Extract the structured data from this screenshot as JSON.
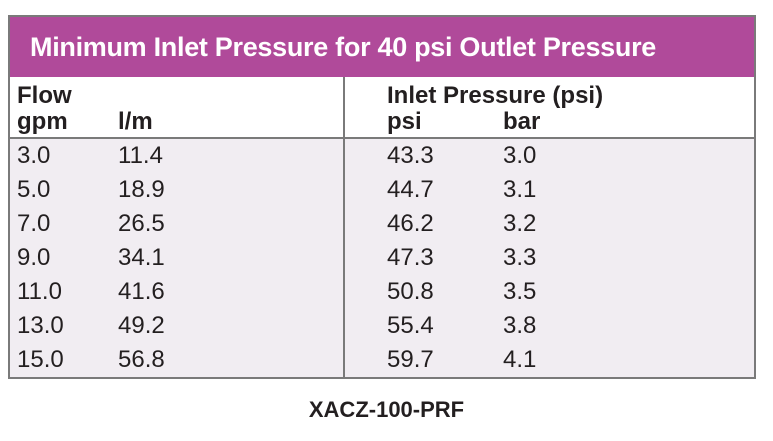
{
  "table": {
    "title": "Minimum Inlet Pressure for 40 psi Outlet Pressure",
    "headers": {
      "flow": "Flow",
      "gpm": "gpm",
      "lpm": "l/m",
      "inlet": "Inlet Pressure (psi)",
      "psi": "psi",
      "bar": "bar"
    },
    "rows": [
      {
        "gpm": "3.0",
        "lpm": "11.4",
        "psi": "43.3",
        "bar": "3.0"
      },
      {
        "gpm": "5.0",
        "lpm": "18.9",
        "psi": "44.7",
        "bar": "3.1"
      },
      {
        "gpm": "7.0",
        "lpm": "26.5",
        "psi": "46.2",
        "bar": "3.2"
      },
      {
        "gpm": "9.0",
        "lpm": "34.1",
        "psi": "47.3",
        "bar": "3.3"
      },
      {
        "gpm": "11.0",
        "lpm": "41.6",
        "psi": "50.8",
        "bar": "3.5"
      },
      {
        "gpm": "13.0",
        "lpm": "49.2",
        "psi": "55.4",
        "bar": "3.8"
      },
      {
        "gpm": "15.0",
        "lpm": "56.8",
        "psi": "59.7",
        "bar": "4.1"
      }
    ]
  },
  "footer": {
    "model_code": "XACZ-100-PRF"
  },
  "colors": {
    "title_bar": "#b04a9a",
    "body_background": "#f1edf2",
    "border": "#7a7a7a"
  }
}
